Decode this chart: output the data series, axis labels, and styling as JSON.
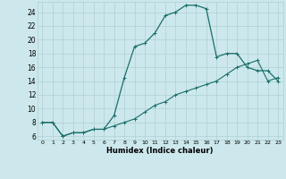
{
  "xlabel": "Humidex (Indice chaleur)",
  "background_color": "#cce8ec",
  "line_color": "#1a6e6a",
  "grid_color": "#b0d0d4",
  "xlim": [
    -0.5,
    23.5
  ],
  "ylim": [
    5.5,
    25.5
  ],
  "xticks": [
    0,
    1,
    2,
    3,
    4,
    5,
    6,
    7,
    8,
    9,
    10,
    11,
    12,
    13,
    14,
    15,
    16,
    17,
    18,
    19,
    20,
    21,
    22,
    23
  ],
  "yticks": [
    6,
    8,
    10,
    12,
    14,
    16,
    18,
    20,
    22,
    24
  ],
  "line1_x": [
    0,
    1,
    2,
    3,
    4,
    5,
    6,
    7,
    8,
    9,
    10,
    11,
    12,
    13,
    14,
    15,
    16,
    17,
    18,
    19,
    20,
    21,
    22,
    23
  ],
  "line1_y": [
    8.0,
    8.0,
    6.0,
    6.5,
    6.5,
    7.0,
    7.0,
    9.0,
    14.5,
    19.0,
    19.5,
    21.0,
    23.5,
    24.0,
    25.0,
    25.0,
    24.5,
    17.5,
    18.0,
    18.0,
    16.0,
    15.5,
    15.5,
    14.0
  ],
  "line2_x": [
    0,
    1,
    2,
    3,
    4,
    5,
    6,
    7,
    8,
    9,
    10,
    11,
    12,
    13,
    14,
    15,
    16,
    17,
    18,
    19,
    20,
    21,
    22,
    23
  ],
  "line2_y": [
    8.0,
    8.0,
    6.0,
    6.5,
    6.5,
    7.0,
    7.0,
    7.5,
    8.0,
    8.5,
    9.5,
    10.5,
    11.0,
    12.0,
    12.5,
    13.0,
    13.5,
    14.0,
    15.0,
    16.0,
    16.5,
    17.0,
    14.0,
    14.5
  ]
}
